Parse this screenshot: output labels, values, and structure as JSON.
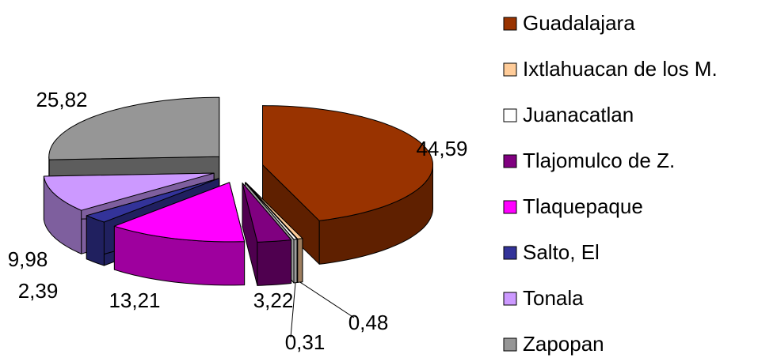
{
  "chart_data": {
    "type": "pie",
    "categories": [
      "Guadalajara",
      "Ixtlahuacan de los M.",
      "Juanacatlan",
      "Tlajomulco de Z.",
      "Tlaquepaque",
      "Salto, El",
      "Tonala",
      "Zapopan"
    ],
    "values": [
      44.59,
      0.48,
      0.31,
      3.22,
      13.21,
      2.39,
      9.98,
      25.82
    ],
    "value_labels": [
      "44,59",
      "0,48",
      "0,31",
      "3,22",
      "13,21",
      "2,39",
      "9,98",
      "25,82"
    ],
    "colors": [
      "#993300",
      "#ffcc99",
      "#ffffff",
      "#800080",
      "#ff00ff",
      "#333399",
      "#cc99ff",
      "#969696"
    ],
    "legend": "right"
  }
}
